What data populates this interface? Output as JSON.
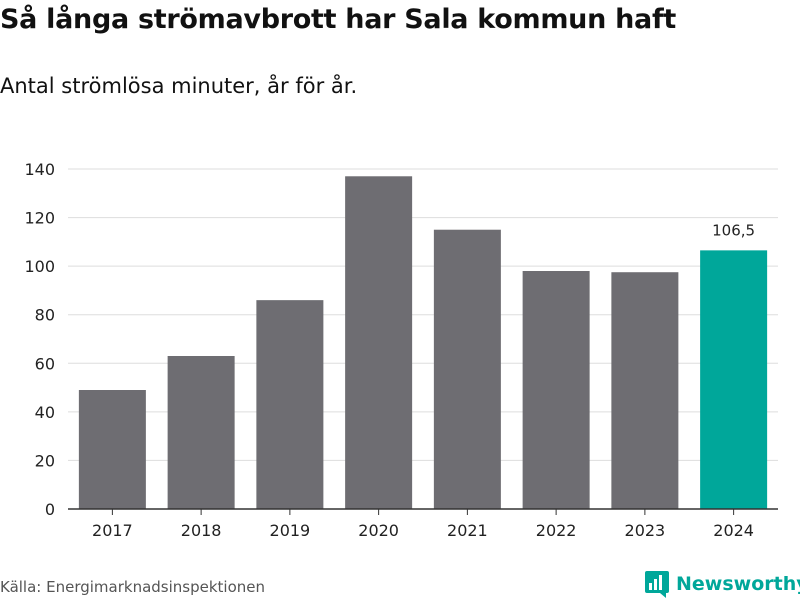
{
  "title": "Så långa strömavbrott har Sala kommun haft",
  "subtitle": "Antal strömlösa minuter, år för år.",
  "source": "Källa: Energimarknadsinspektionen",
  "brand": {
    "name": "Newsworthy",
    "icon": "newsworthy-logo-icon"
  },
  "colors": {
    "bar": "#6e6d72",
    "highlight": "#00a79a",
    "grid": "#dddddd",
    "axis": "#333333",
    "text": "#222222"
  },
  "chart_data": {
    "type": "bar",
    "title": "Så långa strömavbrott har Sala kommun haft",
    "subtitle": "Antal strömlösa minuter, år för år.",
    "xlabel": "",
    "ylabel": "",
    "categories": [
      "2017",
      "2018",
      "2019",
      "2020",
      "2021",
      "2022",
      "2023",
      "2024"
    ],
    "values": [
      49,
      63,
      86,
      137,
      115,
      98,
      97.5,
      106.5
    ],
    "highlight_index": 7,
    "data_labels": [
      {
        "index": 7,
        "text": "106,5"
      }
    ],
    "ylim": [
      0,
      140
    ],
    "yticks": [
      0,
      20,
      40,
      60,
      80,
      100,
      120,
      140
    ],
    "grid": true,
    "legend": "none"
  }
}
